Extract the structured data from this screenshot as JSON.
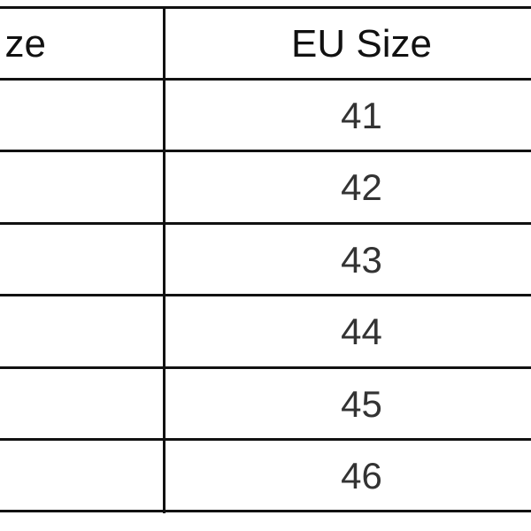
{
  "table": {
    "headers": [
      "Size",
      "EU Size"
    ],
    "left_header_visible": "ze",
    "rows": [
      {
        "eu": "41"
      },
      {
        "eu": "42"
      },
      {
        "eu": "43"
      },
      {
        "eu": "44"
      },
      {
        "eu": "45"
      },
      {
        "eu": "46"
      }
    ]
  }
}
